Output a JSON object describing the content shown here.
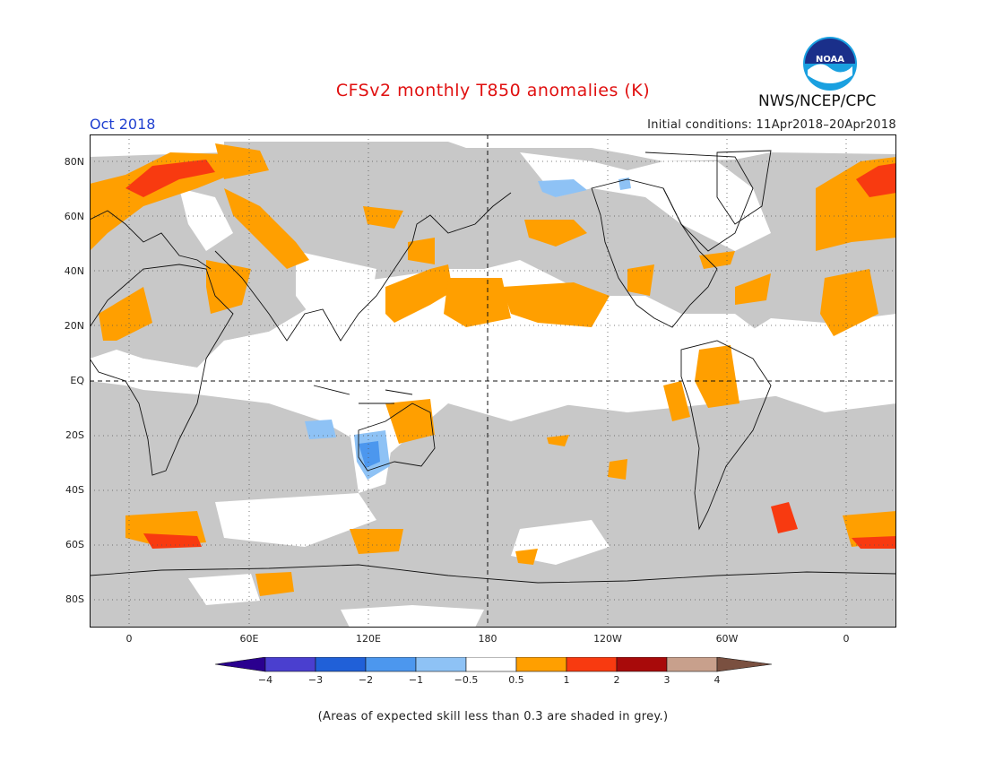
{
  "header": {
    "title": "CFSv2 monthly T850 anomalies (K)",
    "month": "Oct 2018",
    "initial_conditions": "Initial conditions: 11Apr2018–20Apr2018",
    "agency": "NWS/NCEP/CPC",
    "logo_text": "NOAA"
  },
  "axes": {
    "y_labels": [
      "80N",
      "60N",
      "40N",
      "20N",
      "EQ",
      "20S",
      "40S",
      "60S",
      "80S"
    ],
    "x_labels": [
      "0",
      "60E",
      "120E",
      "180",
      "120W",
      "60W",
      "0"
    ]
  },
  "colorbar": {
    "labels": [
      "−4",
      "−3",
      "−2",
      "−1",
      "−0.5",
      "0.5",
      "1",
      "2",
      "3",
      "4"
    ],
    "colors": {
      "lt_m4": "#2a008f",
      "m4_m3": "#4a3fcf",
      "m3_m2": "#2060d8",
      "m2_m1": "#4c97ee",
      "m1_m05": "#8ec2f5",
      "neutral": "#ffffff",
      "p05_p1": "#ff9f00",
      "p1_p2": "#f83a10",
      "p2_p3": "#a80a0a",
      "p3_p4": "#c8a08c",
      "gt_p4": "#7a5040"
    }
  },
  "colors": {
    "low_skill_grey": "#c8c8c8",
    "title_red": "#e01010",
    "month_blue": "#2040d0"
  },
  "note": "(Areas of expected skill less than 0.3 are shaded in grey.)"
}
